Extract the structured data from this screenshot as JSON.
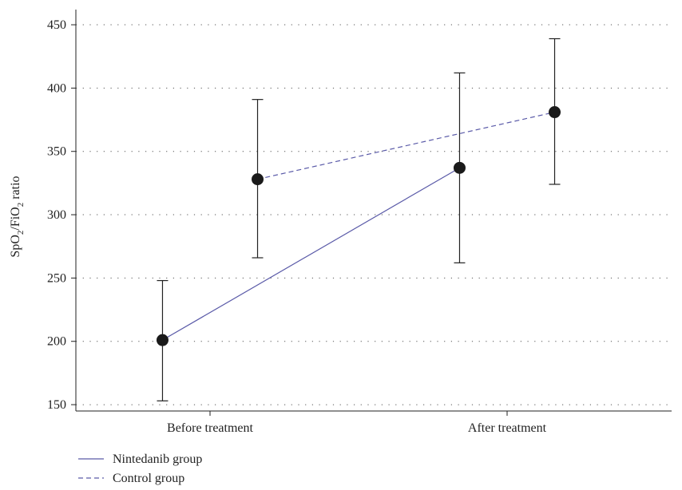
{
  "chart_data": {
    "type": "line",
    "title": "",
    "ylabel": {
      "parts": [
        {
          "text": "SpO",
          "sub": false
        },
        {
          "text": "2",
          "sub": true
        },
        {
          "text": "/FiO",
          "sub": false
        },
        {
          "text": "2",
          "sub": true
        },
        {
          "text": " ratio",
          "sub": false
        }
      ]
    },
    "xlabel": "",
    "categories": [
      "Before treatment",
      "After treatment"
    ],
    "ylim": [
      145,
      462
    ],
    "yticks": [
      150,
      200,
      250,
      300,
      350,
      400,
      450
    ],
    "grid": "horizontal-dotted",
    "legend_position": "bottom-left",
    "series": [
      {
        "name": "Nintedanib group",
        "color": "#5a5aa8",
        "dash": "solid",
        "x_offset": -0.16,
        "points": [
          {
            "category": "Before treatment",
            "mean": 201,
            "lower": 153,
            "upper": 248
          },
          {
            "category": "After treatment",
            "mean": 337,
            "lower": 262,
            "upper": 412
          }
        ]
      },
      {
        "name": "Control group",
        "color": "#5a5aa8",
        "dash": "dashed",
        "x_offset": 0.16,
        "points": [
          {
            "category": "Before treatment",
            "mean": 328,
            "lower": 266,
            "upper": 391
          },
          {
            "category": "After treatment",
            "mean": 381,
            "lower": 324,
            "upper": 439
          }
        ]
      }
    ]
  }
}
